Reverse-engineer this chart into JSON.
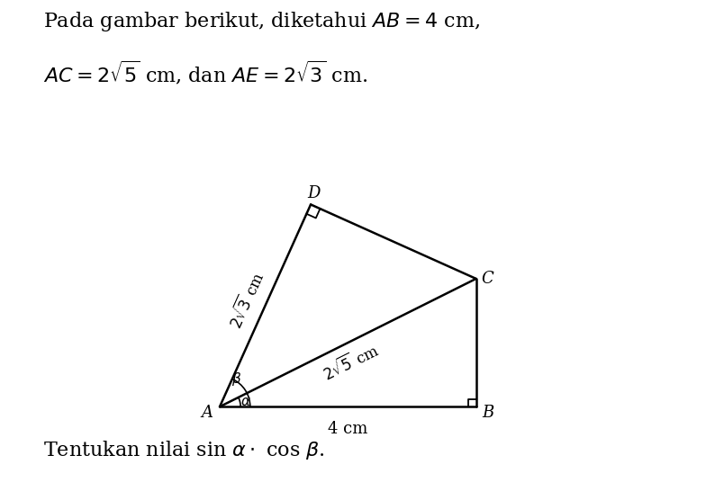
{
  "line_color": "#000000",
  "line_width": 1.8,
  "sq_size": 0.12,
  "font_size_title": 16,
  "font_size_footer": 16,
  "font_size_labels": 13,
  "font_size_annot": 12,
  "AB_label": "4 cm",
  "AC_label": "$2\\sqrt{5}$ cm",
  "AD_label": "$2\\sqrt{3}$ cm",
  "alpha_label": "$\\alpha$",
  "beta_label": "$\\beta$",
  "title_line1": "Pada gambar berikut, diketahui $AB = 4$ cm,",
  "title_line2": "$AC = 2\\sqrt{5}$ cm, dan $AE = 2\\sqrt{3}$ cm.",
  "footer": "Tentukan nilai sin $\\alpha \\cdot$ cos $\\beta$."
}
